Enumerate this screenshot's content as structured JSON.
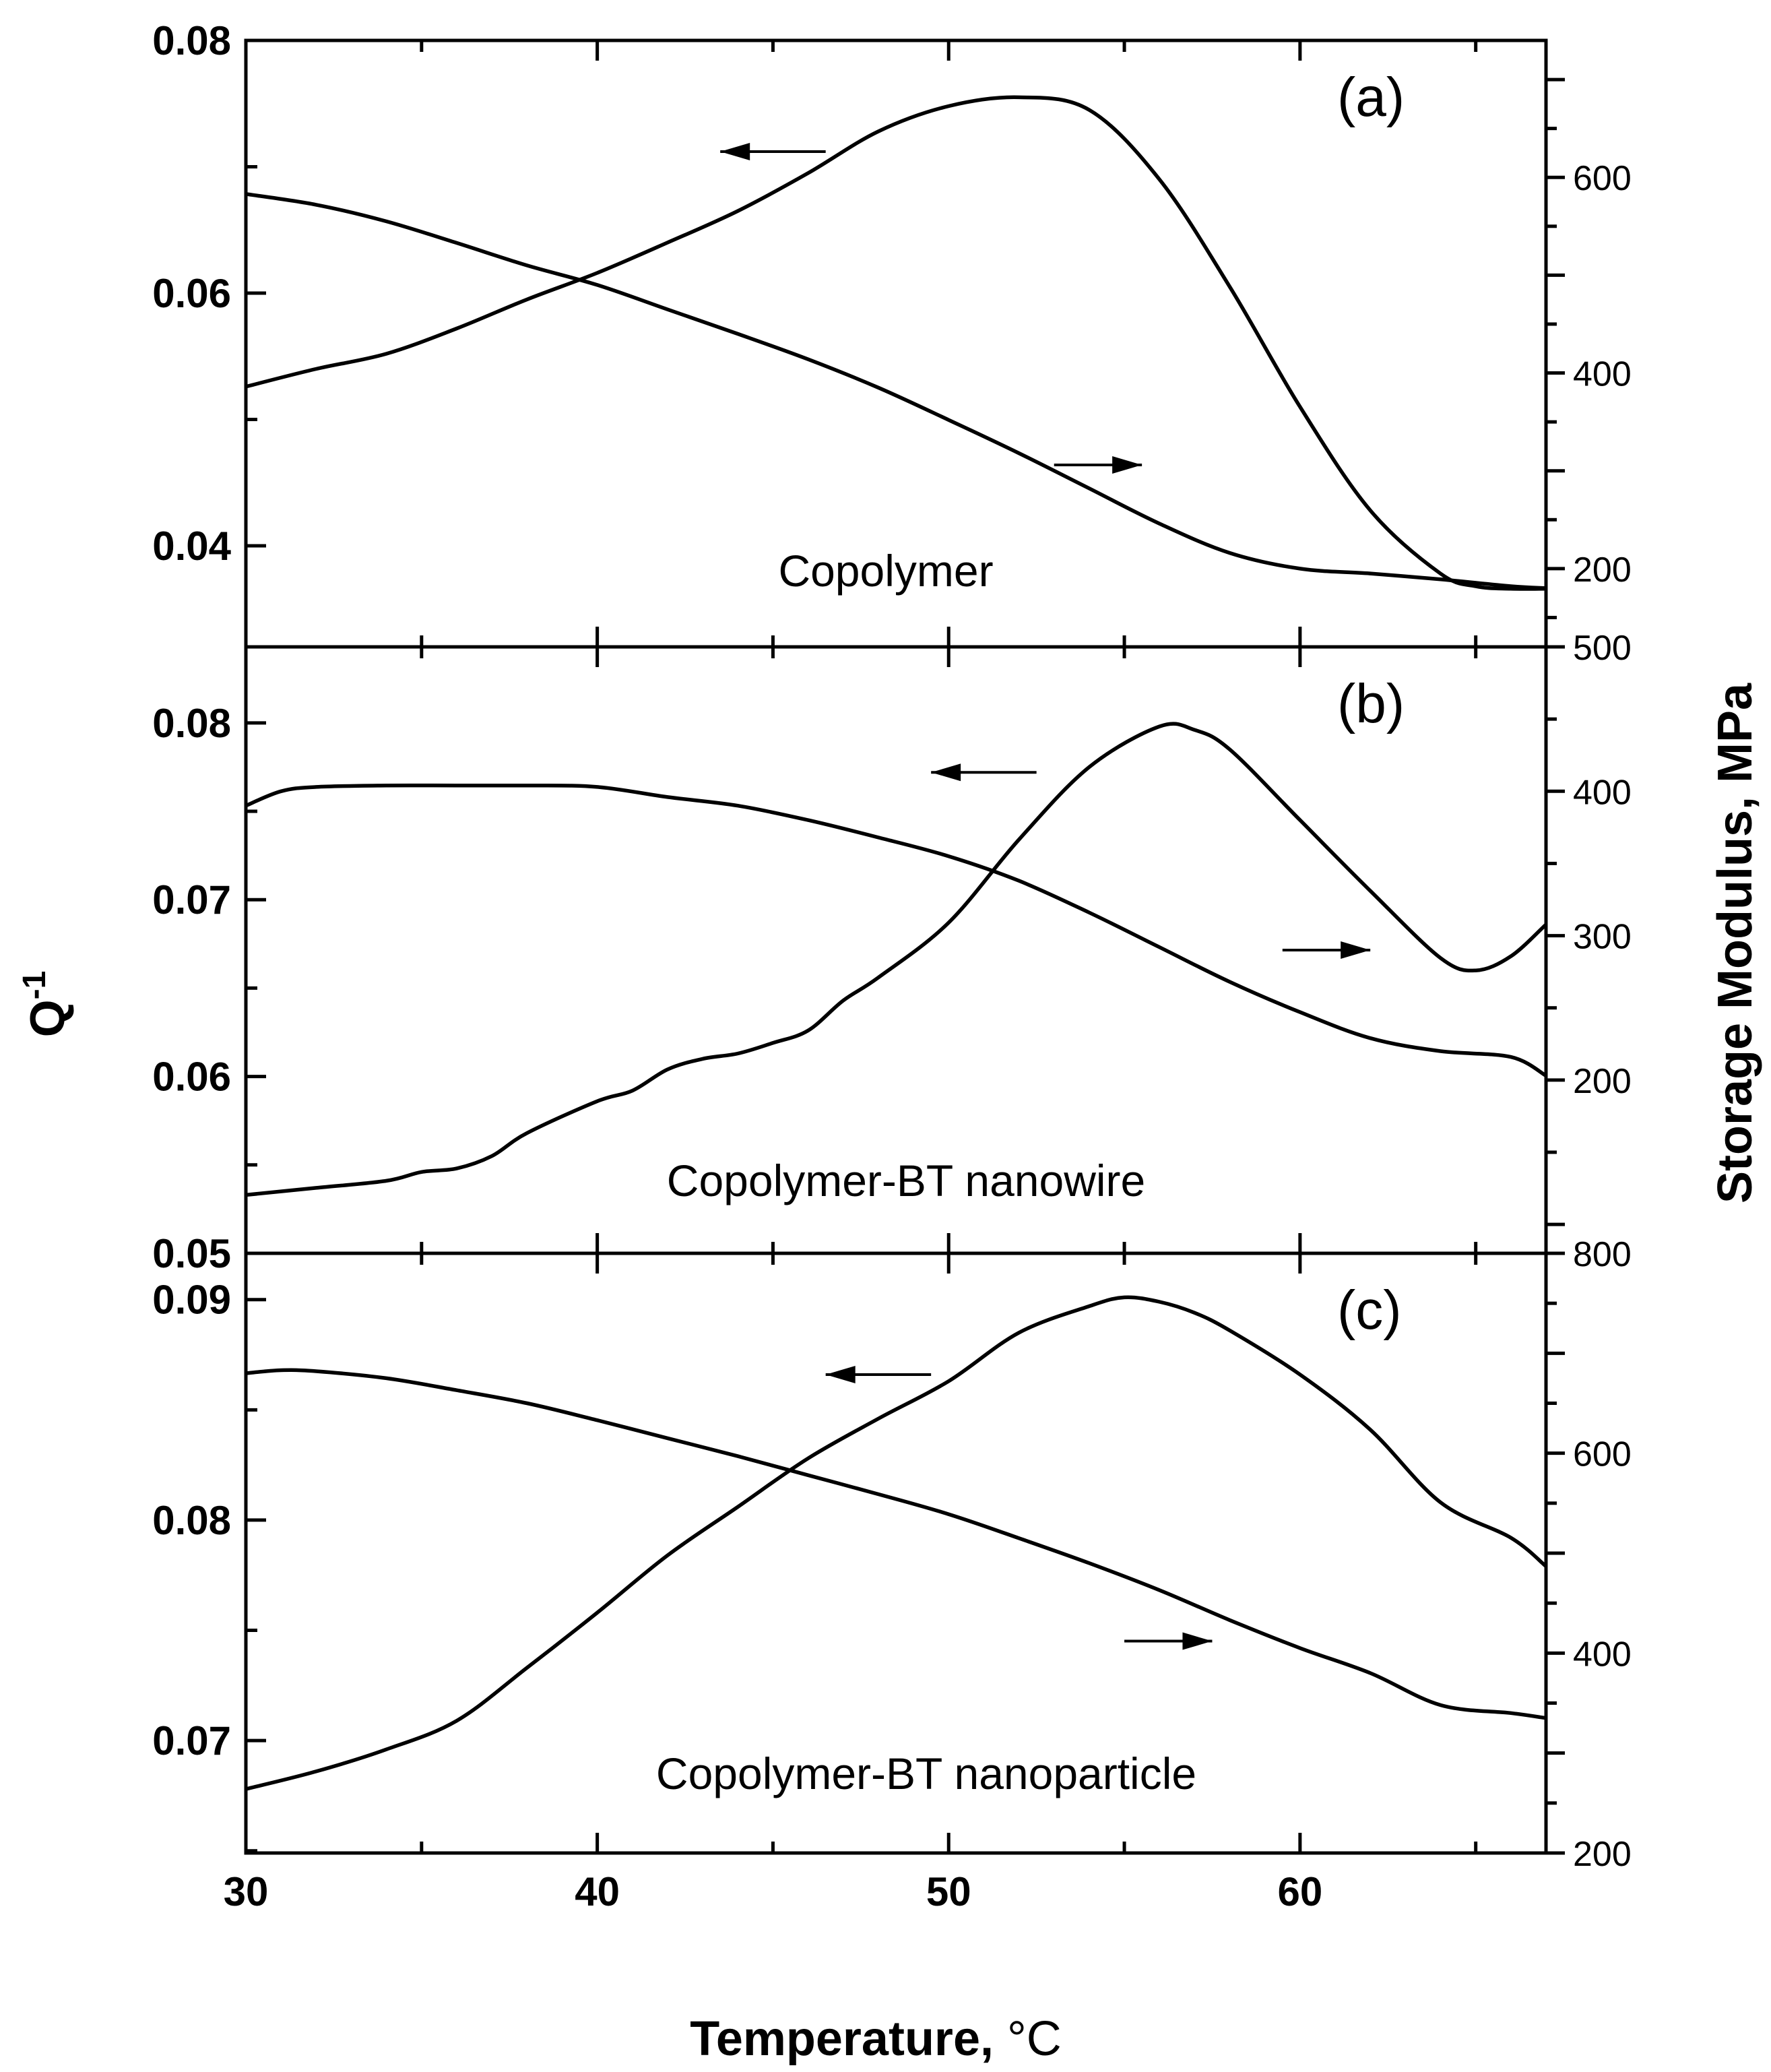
{
  "chart_data": {
    "type": "line",
    "x_axis": {
      "label": "Temperature, ",
      "unit": "°C",
      "range": [
        30,
        67
      ],
      "ticks": [
        30,
        40,
        50,
        60
      ]
    },
    "left_axis_label": {
      "base": "Q",
      "superscript": "-1"
    },
    "right_axis_label": "Storage Modulus, MPa",
    "panels": [
      {
        "label": "(a)",
        "sample": "Copolymer",
        "left_axis": {
          "range": [
            0.032,
            0.08
          ],
          "ticks": [
            0.04,
            0.06,
            0.08
          ],
          "tick_labels": [
            "0.04",
            "0.06",
            "0.08"
          ]
        },
        "right_axis": {
          "range": [
            120,
            740
          ],
          "ticks": [
            200,
            400,
            600
          ],
          "tick_labels": [
            "200",
            "400",
            "600"
          ]
        },
        "series": [
          {
            "name": "Q-1",
            "axis": "left",
            "x": [
              30,
              32,
              34,
              36,
              38,
              40,
              42,
              44,
              46,
              48,
              50,
              52,
              54,
              56,
              58,
              60,
              62,
              64,
              65,
              66,
              67
            ],
            "y": [
              0.0526,
              0.054,
              0.0552,
              0.0572,
              0.0595,
              0.0616,
              0.064,
              0.0665,
              0.0695,
              0.0728,
              0.0748,
              0.0755,
              0.0745,
              0.069,
              0.0605,
              0.051,
              0.0428,
              0.0378,
              0.0368,
              0.0366,
              0.0366
            ]
          },
          {
            "name": "Storage Modulus",
            "axis": "right",
            "x": [
              30,
              32,
              34,
              36,
              38,
              40,
              42,
              44,
              46,
              48,
              50,
              52,
              54,
              56,
              58,
              60,
              62,
              64,
              66,
              67
            ],
            "y": [
              583,
              572,
              555,
              533,
              510,
              490,
              465,
              440,
              414,
              385,
              352,
              318,
              282,
              246,
              216,
              200,
              195,
              189,
              182,
              180
            ]
          }
        ],
        "arrows": [
          {
            "direction": "left",
            "x_from": 46.5,
            "x_to": 43.5,
            "axis": "left",
            "y": 0.0712
          },
          {
            "direction": "right",
            "x_from": 53,
            "x_to": 55.5,
            "axis": "right",
            "y": 306
          }
        ]
      },
      {
        "label": "(b)",
        "sample": "Copolymer-BT nanowire",
        "left_axis": {
          "range": [
            0.05,
            0.0843
          ],
          "ticks": [
            0.05,
            0.06,
            0.07,
            0.08
          ],
          "tick_labels": [
            "0.05",
            "0.06",
            "0.07",
            "0.08"
          ]
        },
        "right_axis": {
          "range": [
            80,
            500
          ],
          "ticks": [
            200,
            300,
            400,
            500
          ],
          "tick_labels": [
            "200",
            "300",
            "400",
            "500"
          ]
        },
        "series": [
          {
            "name": "Q-1",
            "axis": "left",
            "x": [
              30,
              32,
              34,
              35,
              36,
              37,
              38,
              40,
              41,
              42,
              43,
              44,
              45,
              46,
              47,
              48,
              50,
              52,
              54,
              56,
              57,
              58,
              60,
              62,
              64,
              65,
              66,
              67
            ],
            "y": [
              0.0533,
              0.0537,
              0.0541,
              0.0546,
              0.0548,
              0.0555,
              0.0568,
              0.0586,
              0.0592,
              0.0604,
              0.061,
              0.0613,
              0.0619,
              0.0626,
              0.0643,
              0.0656,
              0.0687,
              0.0734,
              0.0775,
              0.0798,
              0.0796,
              0.0785,
              0.0745,
              0.0705,
              0.0667,
              0.066,
              0.0668,
              0.0686
            ]
          },
          {
            "name": "Storage Modulus",
            "axis": "right",
            "x": [
              30,
              31,
              32,
              34,
              36,
              38,
              40,
              42,
              44,
              46,
              48,
              50,
              52,
              54,
              56,
              58,
              60,
              62,
              64,
              66,
              67
            ],
            "y": [
              390,
              400,
              403,
              404,
              404,
              404,
              403,
              396,
              390,
              380,
              368,
              355,
              338,
              316,
              292,
              268,
              247,
              229,
              220,
              216,
              203
            ]
          }
        ],
        "arrows": [
          {
            "direction": "left",
            "x_from": 52.5,
            "x_to": 49.5,
            "axis": "left",
            "y": 0.0772
          },
          {
            "direction": "right",
            "x_from": 59.5,
            "x_to": 62,
            "axis": "right",
            "y": 290
          }
        ]
      },
      {
        "label": "(c)",
        "sample": "Copolymer-BT nanoparticle",
        "left_axis": {
          "range": [
            0.0649,
            0.0921
          ],
          "ticks": [
            0.07,
            0.08,
            0.09
          ],
          "tick_labels": [
            "0.07",
            "0.08",
            "0.09"
          ]
        },
        "right_axis": {
          "range": [
            200,
            800
          ],
          "ticks": [
            200,
            400,
            600,
            800
          ],
          "tick_labels": [
            "200",
            "400",
            "600",
            "800"
          ]
        },
        "series": [
          {
            "name": "Q-1",
            "axis": "left",
            "x": [
              30,
              32,
              34,
              36,
              38,
              40,
              42,
              44,
              46,
              48,
              50,
              52,
              54,
              55,
              56,
              57,
              58,
              60,
              62,
              64,
              66,
              67
            ],
            "y": [
              0.0678,
              0.0686,
              0.0696,
              0.0709,
              0.0733,
              0.0758,
              0.0784,
              0.0806,
              0.0828,
              0.0846,
              0.0863,
              0.0885,
              0.0897,
              0.0901,
              0.0899,
              0.0894,
              0.0886,
              0.0866,
              0.0841,
              0.0808,
              0.0792,
              0.0779
            ]
          },
          {
            "name": "Storage Modulus",
            "axis": "right",
            "x": [
              30,
              31,
              32,
              34,
              36,
              38,
              40,
              42,
              44,
              46,
              48,
              50,
              52,
              54,
              56,
              58,
              60,
              62,
              64,
              66,
              67
            ],
            "y": [
              680,
              683,
              682,
              675,
              663,
              650,
              633,
              615,
              597,
              578,
              559,
              539,
              515,
              490,
              463,
              433,
              405,
              380,
              348,
              340,
              335
            ]
          }
        ],
        "arrows": [
          {
            "direction": "left",
            "x_from": 49.5,
            "x_to": 46.5,
            "axis": "left",
            "y": 0.0866
          },
          {
            "direction": "right",
            "x_from": 55,
            "x_to": 57.5,
            "axis": "right",
            "y": 412
          }
        ]
      }
    ]
  }
}
